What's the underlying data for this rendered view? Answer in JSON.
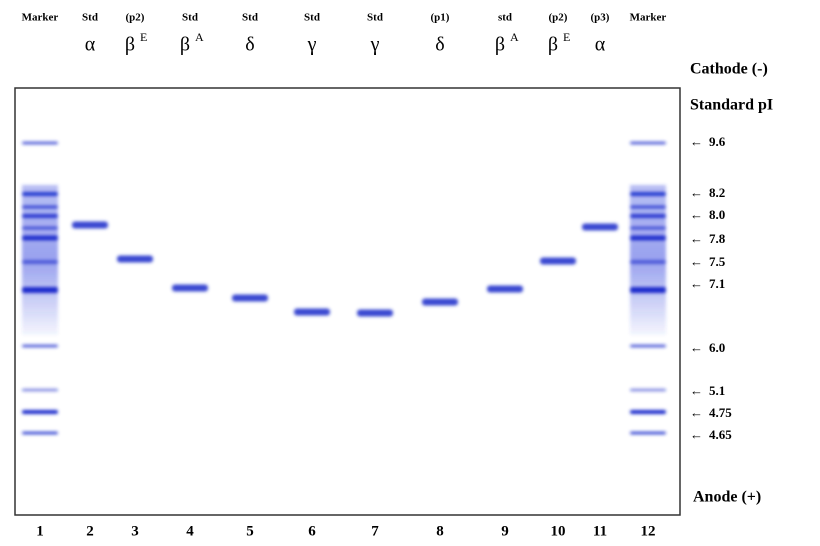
{
  "lanes": [
    {
      "number": "1",
      "top": "Marker"
    },
    {
      "number": "2",
      "top": "Std",
      "symbol": "α"
    },
    {
      "number": "3",
      "top": "(p2)",
      "symbol": "β",
      "sup": "E"
    },
    {
      "number": "4",
      "top": "Std",
      "symbol": "β",
      "sup": "A"
    },
    {
      "number": "5",
      "top": "Std",
      "symbol": "δ"
    },
    {
      "number": "6",
      "top": "Std",
      "symbol": "γ"
    },
    {
      "number": "7",
      "top": "Std",
      "symbol": "γ"
    },
    {
      "number": "8",
      "top": "(p1)",
      "symbol": "δ"
    },
    {
      "number": "9",
      "top": "std",
      "symbol": "β",
      "sup": "A"
    },
    {
      "number": "10",
      "top": "(p2)",
      "symbol": "β",
      "sup": "E"
    },
    {
      "number": "11",
      "top": "(p3)",
      "symbol": "α"
    },
    {
      "number": "12",
      "top": "Marker"
    }
  ],
  "cathode": "Cathode (-)",
  "standard_pi": "Standard pI",
  "anode": "Anode (+)",
  "pi_labels": [
    "9.6",
    "8.2",
    "8.0",
    "7.8",
    "7.5",
    "7.1",
    "6.0",
    "5.1",
    "4.75",
    "4.65"
  ]
}
